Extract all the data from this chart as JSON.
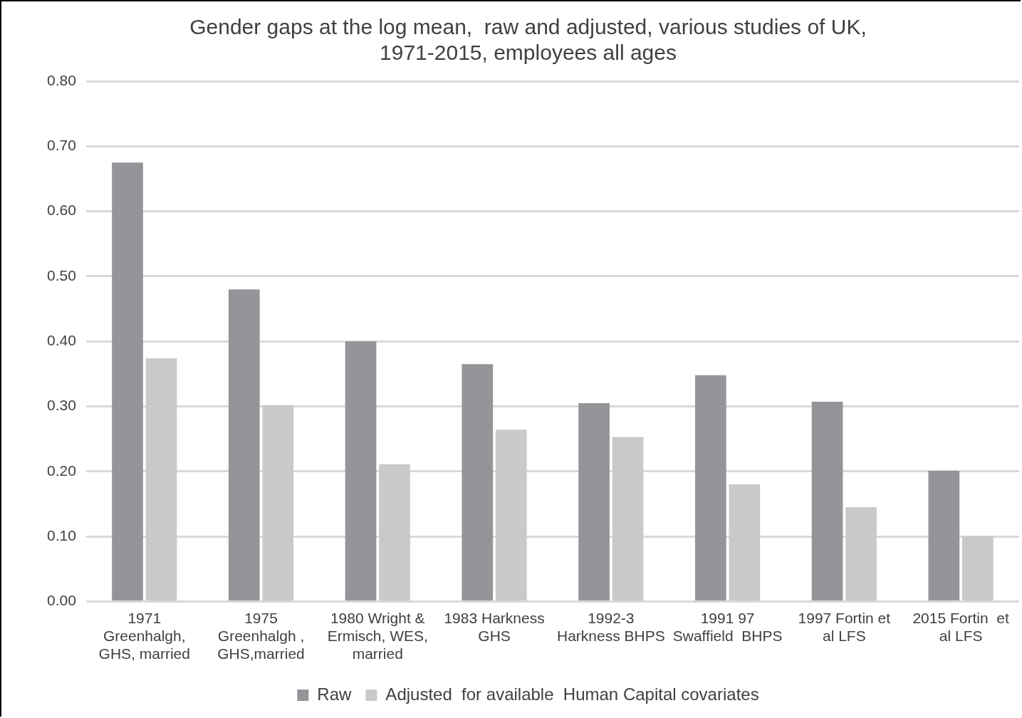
{
  "chart_data": {
    "type": "bar",
    "title": "Gender gaps at the log mean,  raw and adjusted, various studies of UK,\n1971-2015, employees all ages",
    "categories": [
      "1971\nGreenhalgh,\nGHS, married",
      "1975\nGreenhalgh ,\nGHS,married",
      "1980 Wright &\nErmisch, WES,\nmarried",
      "1983 Harkness\nGHS",
      "1992-3\nHarkness BHPS",
      "1991 97\nSwaffield  BHPS",
      "1997 Fortin et\nal LFS",
      "2015 Fortin  et\nal LFS"
    ],
    "series": [
      {
        "name": "Raw",
        "color": "#939598",
        "values": [
          0.675,
          0.48,
          0.4,
          0.365,
          0.305,
          0.348,
          0.307,
          0.201
        ]
      },
      {
        "name": "Adjusted  for available  Human Capital covariates",
        "color": "#c8c9cb",
        "values": [
          0.374,
          0.302,
          0.211,
          0.264,
          0.253,
          0.18,
          0.145,
          0.1
        ]
      }
    ],
    "ylim": [
      0,
      0.8
    ],
    "yticks": [
      {
        "value": 0,
        "label": "0.00"
      },
      {
        "value": 0.1,
        "label": "0.10"
      },
      {
        "value": 0.2,
        "label": "0.20"
      },
      {
        "value": 0.3,
        "label": "0.30"
      },
      {
        "value": 0.4,
        "label": "0.40"
      },
      {
        "value": 0.5,
        "label": "0.50"
      },
      {
        "value": 0.6,
        "label": "0.60"
      },
      {
        "value": 0.7,
        "label": "0.70"
      },
      {
        "value": 0.8,
        "label": "0.80"
      }
    ],
    "grid": "y",
    "legend": "bottom"
  }
}
